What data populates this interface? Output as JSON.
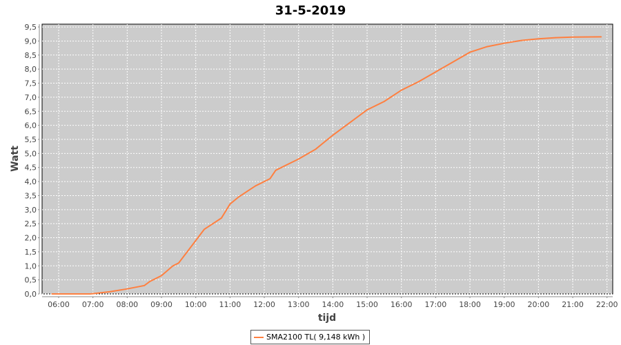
{
  "chart_data": {
    "type": "line",
    "title": "31-5-2019",
    "xlabel": "tijd",
    "ylabel": "Watt",
    "xlim": [
      "05:31",
      "22:10"
    ],
    "ylim": [
      0,
      9.6
    ],
    "grid": true,
    "legend_placement": "bottom",
    "x_ticks": [
      "06:00",
      "07:00",
      "08:00",
      "09:00",
      "10:00",
      "11:00",
      "12:00",
      "13:00",
      "14:00",
      "15:00",
      "16:00",
      "17:00",
      "18:00",
      "19:00",
      "20:00",
      "21:00",
      "22:00"
    ],
    "y_ticks": [
      "0,0",
      "0,5",
      "1,0",
      "1,5",
      "2,0",
      "2,5",
      "3,0",
      "3,5",
      "4,0",
      "4,5",
      "5,0",
      "5,5",
      "6,0",
      "6,5",
      "7,0",
      "7,5",
      "8,0",
      "8,5",
      "9,0",
      "9,5"
    ],
    "colors": {
      "plot_background": "#cccccc",
      "grid": "#ffffff",
      "series": "#ff7f3f"
    },
    "series": [
      {
        "name": "SMA2100 TL( 9,148 kWh )",
        "x": [
          "05:48",
          "06:55",
          "07:00",
          "07:30",
          "08:00",
          "08:30",
          "08:40",
          "09:00",
          "09:20",
          "09:30",
          "10:00",
          "10:15",
          "10:30",
          "10:45",
          "11:00",
          "11:15",
          "11:30",
          "11:45",
          "12:00",
          "12:10",
          "12:20",
          "12:40",
          "13:00",
          "13:30",
          "14:00",
          "14:30",
          "15:00",
          "15:30",
          "16:00",
          "16:30",
          "17:00",
          "17:30",
          "18:00",
          "18:30",
          "19:00",
          "19:30",
          "20:00",
          "20:30",
          "21:00",
          "21:50"
        ],
        "values": [
          0,
          0,
          0.01,
          0.08,
          0.18,
          0.3,
          0.45,
          0.65,
          1.0,
          1.1,
          1.9,
          2.3,
          2.5,
          2.7,
          3.2,
          3.45,
          3.65,
          3.85,
          4.0,
          4.1,
          4.4,
          4.6,
          4.8,
          5.15,
          5.65,
          6.1,
          6.55,
          6.85,
          7.25,
          7.55,
          7.9,
          8.25,
          8.6,
          8.8,
          8.92,
          9.02,
          9.08,
          9.12,
          9.14,
          9.148
        ]
      }
    ]
  }
}
